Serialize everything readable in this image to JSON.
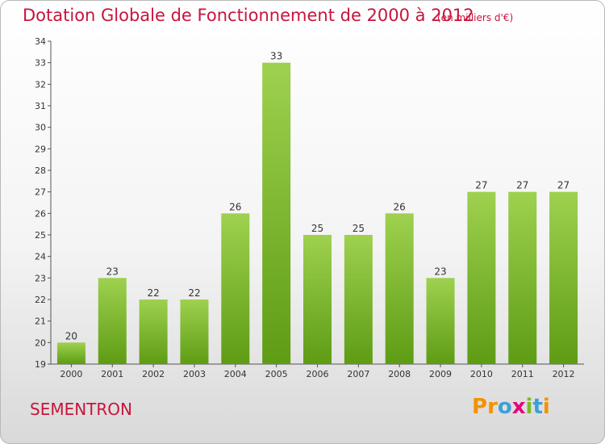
{
  "chart_title": "Dotation Globale de Fonctionnement de 2000 à 2012",
  "unit_label": "(en milliers d'€)",
  "commune_name": "SEMENTRON",
  "brand": {
    "letters": [
      "P",
      "r",
      "o",
      "x",
      "i",
      "t",
      "i"
    ],
    "colors": [
      "#f39200",
      "#f39200",
      "#3aa1d7",
      "#e6007e",
      "#7ab929",
      "#3aa1d7",
      "#f39200"
    ]
  },
  "colors": {
    "title": "#c8143c",
    "bar_light": "#9ed14f",
    "bar_dark": "#5e9c14",
    "axis": "#555555"
  },
  "chart_data": {
    "type": "bar",
    "title": "Dotation Globale de Fonctionnement de 2000 à 2012",
    "categories": [
      "2000",
      "2001",
      "2002",
      "2003",
      "2004",
      "2005",
      "2006",
      "2007",
      "2008",
      "2009",
      "2010",
      "2011",
      "2012"
    ],
    "values": [
      20,
      23,
      22,
      22,
      26,
      33,
      25,
      25,
      26,
      23,
      27,
      27,
      27
    ],
    "ylim": [
      19,
      34
    ],
    "yticks": [
      19,
      20,
      21,
      22,
      23,
      24,
      25,
      26,
      27,
      28,
      29,
      30,
      31,
      32,
      33,
      34
    ],
    "grid": false,
    "xlabel": "",
    "ylabel": ""
  }
}
